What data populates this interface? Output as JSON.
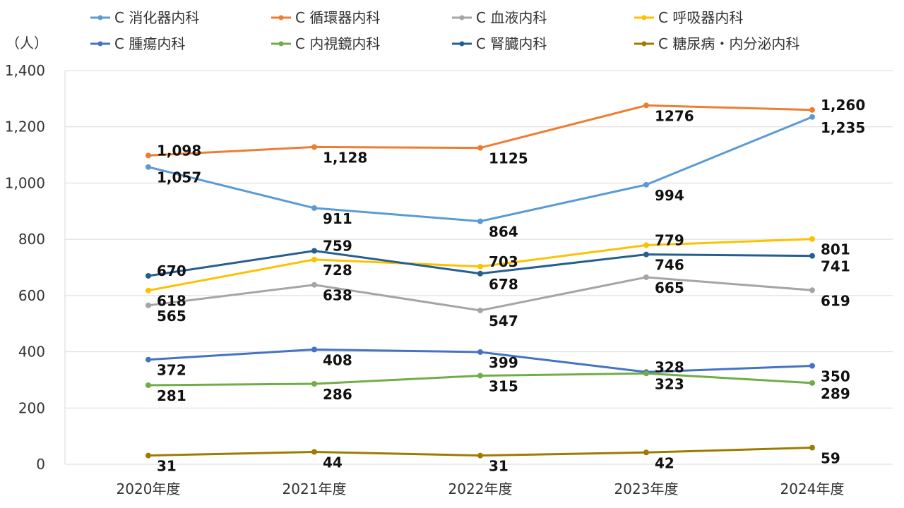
{
  "chart_data": {
    "type": "line",
    "title": "",
    "xlabel": "",
    "ylabel": "（人）",
    "ylim": [
      0,
      1400
    ],
    "yticks": [
      "0",
      "200",
      "400",
      "600",
      "800",
      "1,000",
      "1,200",
      "1,400"
    ],
    "grid": true,
    "legend_position": "top",
    "categories": [
      "2020年度",
      "2021年度",
      "2022年度",
      "2023年度",
      "2024年度"
    ],
    "series": [
      {
        "name": "C 消化器内科",
        "color": "#5b9bd5",
        "values": [
          1057,
          911,
          864,
          994,
          1235
        ],
        "labels": [
          "1,057",
          "911",
          "864",
          "994",
          "1,235"
        ]
      },
      {
        "name": "C 循環器内科",
        "color": "#ed7d31",
        "values": [
          1098,
          1128,
          1125,
          1276,
          1260
        ],
        "labels": [
          "1,098",
          "1,128",
          "1125",
          "1276",
          "1,260"
        ]
      },
      {
        "name": "C 血液内科",
        "color": "#a5a5a5",
        "values": [
          565,
          638,
          547,
          665,
          619
        ],
        "labels": [
          "565",
          "638",
          "547",
          "665",
          "619"
        ]
      },
      {
        "name": "C 呼吸器内科",
        "color": "#ffc000",
        "values": [
          618,
          728,
          703,
          779,
          801
        ],
        "labels": [
          "618",
          "728",
          "703",
          "779",
          "801"
        ]
      },
      {
        "name": "C 腫瘍内科",
        "color": "#4472c4",
        "values": [
          372,
          408,
          399,
          328,
          350
        ],
        "labels": [
          "372",
          "408",
          "399",
          "328",
          "350"
        ]
      },
      {
        "name": "C 内視鏡内科",
        "color": "#70ad47",
        "values": [
          281,
          286,
          315,
          323,
          289
        ],
        "labels": [
          "281",
          "286",
          "315",
          "323",
          "289"
        ]
      },
      {
        "name": "C 腎臓内科",
        "color": "#255e91",
        "values": [
          670,
          759,
          678,
          746,
          741
        ],
        "labels": [
          "670",
          "759",
          "678",
          "746",
          "741"
        ]
      },
      {
        "name": "C 糖尿病・内分泌内科",
        "color": "#9e7b00",
        "values": [
          31,
          44,
          31,
          42,
          59
        ],
        "labels": [
          "31",
          "44",
          "31",
          "42",
          "59"
        ]
      }
    ]
  }
}
